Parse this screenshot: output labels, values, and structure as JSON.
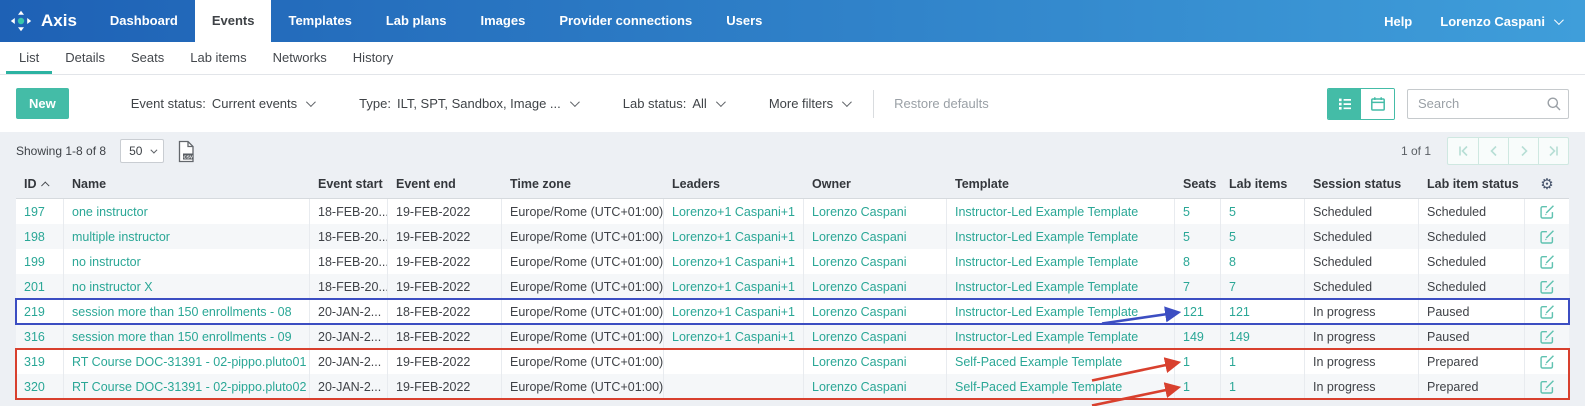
{
  "brand": {
    "name": "Axis"
  },
  "topnav": {
    "items": [
      {
        "label": "Dashboard",
        "active": false
      },
      {
        "label": "Events",
        "active": true
      },
      {
        "label": "Templates",
        "active": false
      },
      {
        "label": "Lab plans",
        "active": false
      },
      {
        "label": "Images",
        "active": false
      },
      {
        "label": "Provider connections",
        "active": false
      },
      {
        "label": "Users",
        "active": false
      }
    ],
    "help": "Help",
    "user": "Lorenzo Caspani"
  },
  "tabs": {
    "items": [
      {
        "label": "List",
        "active": true
      },
      {
        "label": "Details",
        "active": false
      },
      {
        "label": "Seats",
        "active": false
      },
      {
        "label": "Lab items",
        "active": false
      },
      {
        "label": "Networks",
        "active": false
      },
      {
        "label": "History",
        "active": false
      }
    ]
  },
  "filters": {
    "new_button": "New",
    "items": [
      {
        "name": "event-status",
        "label": "Event status:",
        "value": "Current events"
      },
      {
        "name": "type",
        "label": "Type:",
        "value": "ILT, SPT, Sandbox, Image ..."
      },
      {
        "name": "lab-status",
        "label": "Lab status:",
        "value": "All"
      },
      {
        "name": "more-filters",
        "label": "More filters",
        "value": ""
      }
    ],
    "restore_defaults": "Restore defaults",
    "search_placeholder": "Search"
  },
  "toolbar": {
    "showing": "Showing 1-8 of 8",
    "page_size": "50",
    "page_indicator": "1 of 1"
  },
  "table": {
    "columns": [
      {
        "key": "id",
        "label": "ID",
        "sort": "asc"
      },
      {
        "key": "name",
        "label": "Name"
      },
      {
        "key": "event_start",
        "label": "Event start"
      },
      {
        "key": "event_end",
        "label": "Event end"
      },
      {
        "key": "time_zone",
        "label": "Time zone"
      },
      {
        "key": "leaders",
        "label": "Leaders"
      },
      {
        "key": "owner",
        "label": "Owner"
      },
      {
        "key": "template",
        "label": "Template"
      },
      {
        "key": "seats",
        "label": "Seats"
      },
      {
        "key": "lab_items",
        "label": "Lab items"
      },
      {
        "key": "session_status",
        "label": "Session status"
      },
      {
        "key": "lab_item_status",
        "label": "Lab item status"
      },
      {
        "key": "actions",
        "label": ""
      }
    ],
    "link_columns": [
      "id",
      "name",
      "leaders",
      "owner",
      "template",
      "seats",
      "lab_items"
    ],
    "rows": [
      {
        "id": "197",
        "name": "one instructor",
        "event_start": "18-FEB-20...",
        "event_end": "19-FEB-2022",
        "time_zone": "Europe/Rome (UTC+01:00)",
        "leaders": "Lorenzo+1 Caspani+1",
        "owner": "Lorenzo Caspani",
        "template": "Instructor-Led Example Template",
        "seats": "5",
        "lab_items": "5",
        "session_status": "Scheduled",
        "lab_item_status": "Scheduled"
      },
      {
        "id": "198",
        "name": "multiple instructor",
        "event_start": "18-FEB-20...",
        "event_end": "19-FEB-2022",
        "time_zone": "Europe/Rome (UTC+01:00)",
        "leaders": "Lorenzo+1 Caspani+1",
        "owner": "Lorenzo Caspani",
        "template": "Instructor-Led Example Template",
        "seats": "5",
        "lab_items": "5",
        "session_status": "Scheduled",
        "lab_item_status": "Scheduled"
      },
      {
        "id": "199",
        "name": "no instructor",
        "event_start": "18-FEB-20...",
        "event_end": "19-FEB-2022",
        "time_zone": "Europe/Rome (UTC+01:00)",
        "leaders": "Lorenzo+1 Caspani+1",
        "owner": "Lorenzo Caspani",
        "template": "Instructor-Led Example Template",
        "seats": "8",
        "lab_items": "8",
        "session_status": "Scheduled",
        "lab_item_status": "Scheduled"
      },
      {
        "id": "201",
        "name": "no instructor X",
        "event_start": "18-FEB-20...",
        "event_end": "19-FEB-2022",
        "time_zone": "Europe/Rome (UTC+01:00)",
        "leaders": "Lorenzo+1 Caspani+1",
        "owner": "Lorenzo Caspani",
        "template": "Instructor-Led Example Template",
        "seats": "7",
        "lab_items": "7",
        "session_status": "Scheduled",
        "lab_item_status": "Scheduled"
      },
      {
        "id": "219",
        "name": "session more than 150 enrollments - 08",
        "event_start": "20-JAN-2...",
        "event_end": "18-FEB-2022",
        "time_zone": "Europe/Rome (UTC+01:00)",
        "leaders": "Lorenzo+1 Caspani+1",
        "owner": "Lorenzo Caspani",
        "template": "Instructor-Led Example Template",
        "seats": "121",
        "lab_items": "121",
        "session_status": "In progress",
        "lab_item_status": "Paused"
      },
      {
        "id": "316",
        "name": "session more than 150 enrollments - 09",
        "event_start": "20-JAN-2...",
        "event_end": "18-FEB-2022",
        "time_zone": "Europe/Rome (UTC+01:00)",
        "leaders": "Lorenzo+1 Caspani+1",
        "owner": "Lorenzo Caspani",
        "template": "Instructor-Led Example Template",
        "seats": "149",
        "lab_items": "149",
        "session_status": "In progress",
        "lab_item_status": "Paused"
      },
      {
        "id": "319",
        "name": "RT Course DOC-31391 - 02-pippo.pluto01",
        "event_start": "20-JAN-2...",
        "event_end": "19-FEB-2022",
        "time_zone": "Europe/Rome (UTC+01:00)",
        "leaders": "",
        "owner": "Lorenzo Caspani",
        "template": "Self-Paced Example Template",
        "seats": "1",
        "lab_items": "1",
        "session_status": "In progress",
        "lab_item_status": "Prepared"
      },
      {
        "id": "320",
        "name": "RT Course DOC-31391 - 02-pippo.pluto02",
        "event_start": "20-JAN-2...",
        "event_end": "19-FEB-2022",
        "time_zone": "Europe/Rome (UTC+01:00)",
        "leaders": "",
        "owner": "Lorenzo Caspani",
        "template": "Self-Paced Example Template",
        "seats": "1",
        "lab_items": "1",
        "session_status": "In progress",
        "lab_item_status": "Prepared"
      }
    ]
  },
  "annotations": {
    "blue_box_row_id": "219",
    "red_box_row_ids": [
      "319",
      "320"
    ],
    "arrows": [
      {
        "color": "blue",
        "row_id": "219",
        "column": "seats"
      },
      {
        "color": "red",
        "row_id": "319",
        "column": "seats"
      },
      {
        "color": "red",
        "row_id": "320",
        "column": "seats"
      }
    ]
  },
  "theme": {
    "nav_gradient_start": "#1e61b5",
    "nav_gradient_end": "#3f9eda",
    "accent_button": "#44bca7",
    "link_color": "#2aa796",
    "tab_underline": "#2cb3a2",
    "content_bg": "#edf0f4",
    "annotation_blue": "#3c4ec2",
    "annotation_red": "#d8402e"
  }
}
